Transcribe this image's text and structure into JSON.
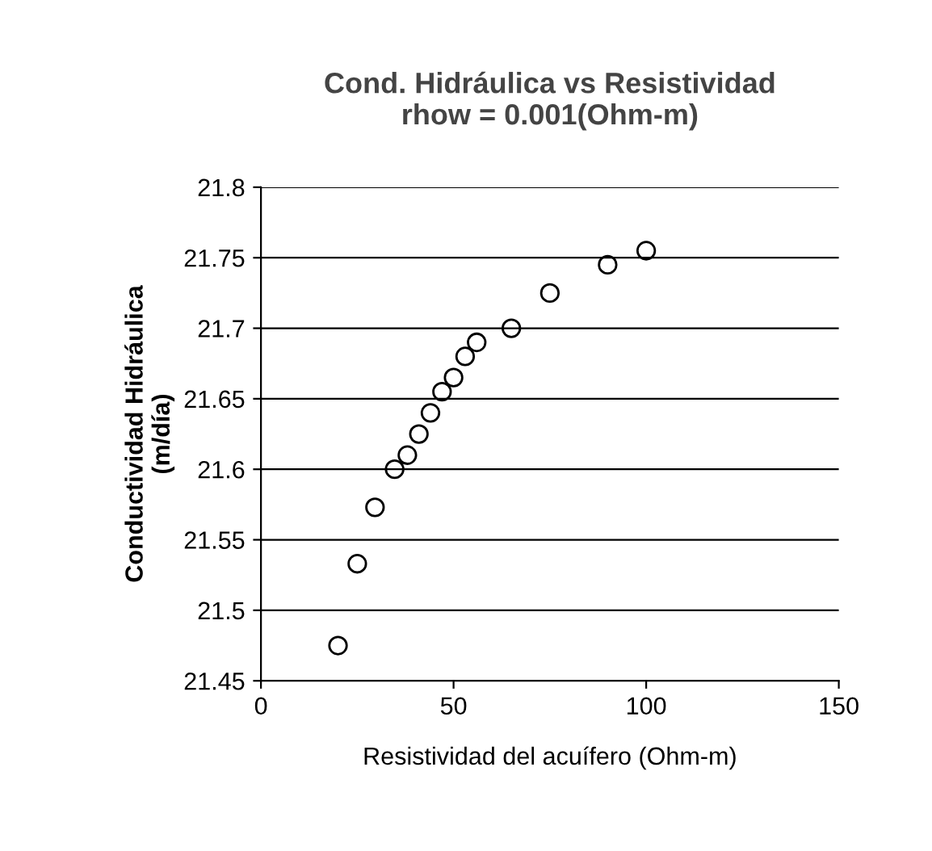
{
  "chart_data": {
    "type": "scatter",
    "title": "Cond. Hidráulica vs Resistividad\nrhow = 0.001(Ohm-m)",
    "xlabel": "Resistividad del acuífero (Ohm-m)",
    "ylabel": "Conductividad Hidráulica\n(m/día)",
    "x": [
      20,
      25,
      29.6,
      34.7,
      38,
      41,
      44,
      47,
      50,
      53,
      56,
      65,
      75,
      90,
      100
    ],
    "values": [
      21.475,
      21.533,
      21.573,
      21.6,
      21.61,
      21.625,
      21.64,
      21.655,
      21.665,
      21.68,
      21.69,
      21.7,
      21.725,
      21.745,
      21.755
    ],
    "color": "#000000",
    "marker": "circle",
    "xlim": [
      0,
      150
    ],
    "xticks": [
      0,
      50,
      100,
      150
    ],
    "ylim": [
      21.45,
      21.8
    ],
    "yticks": [
      {
        "value": 21.45,
        "label": "21.45"
      },
      {
        "value": 21.5,
        "label": "21.5"
      },
      {
        "value": 21.55,
        "label": "21.55"
      },
      {
        "value": 21.6,
        "label": "21.6"
      },
      {
        "value": 21.65,
        "label": "21.65"
      },
      {
        "value": 21.7,
        "label": "21.7"
      },
      {
        "value": 21.75,
        "label": "21.75"
      },
      {
        "value": 21.8,
        "label": "21.8"
      }
    ],
    "grid": "y"
  }
}
